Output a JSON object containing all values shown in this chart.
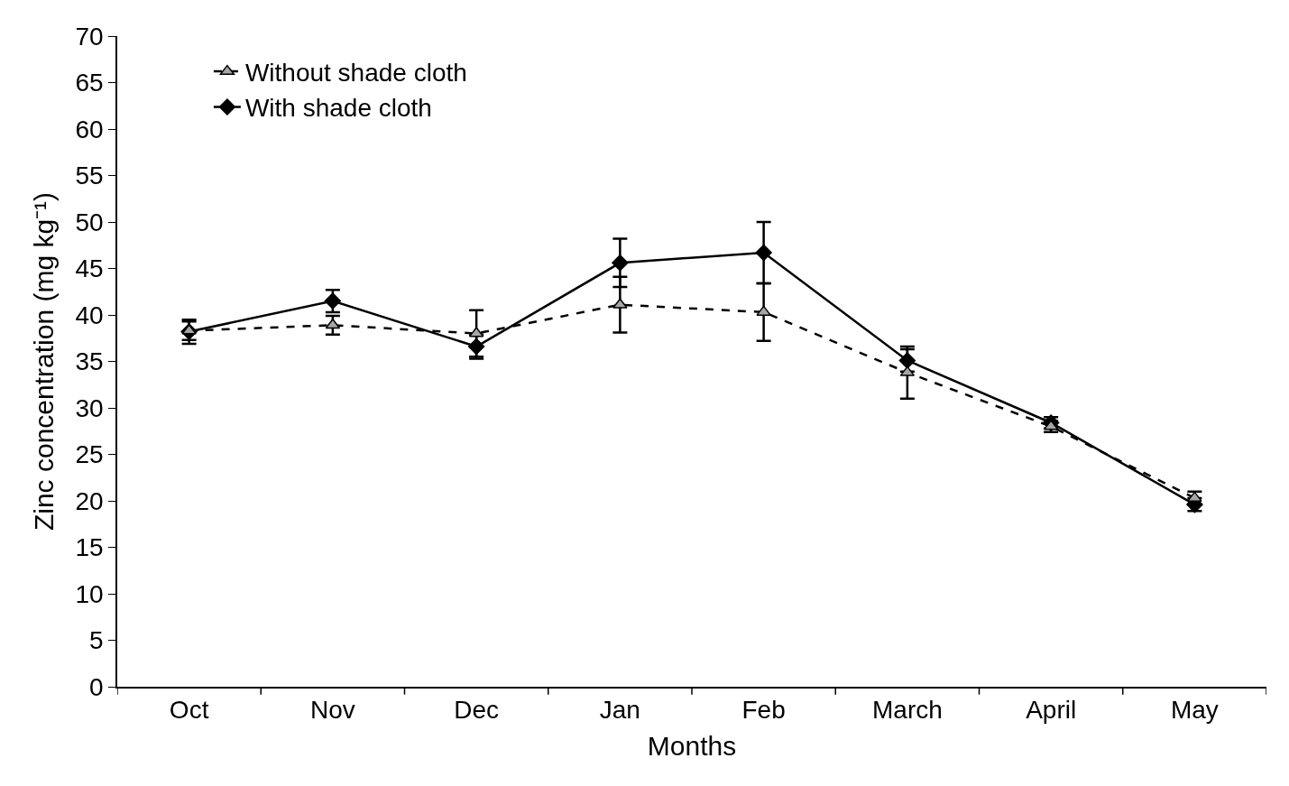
{
  "chart_data": {
    "type": "line",
    "xlabel": "Months",
    "ylabel": "Zinc concentration (mg kg⁻¹)",
    "categories": [
      "Oct",
      "Nov",
      "Dec",
      "Jan",
      "Feb",
      "March",
      "April",
      "May"
    ],
    "ylim": [
      0,
      70
    ],
    "yticks": [
      0,
      5,
      10,
      15,
      20,
      25,
      30,
      35,
      40,
      45,
      50,
      55,
      60,
      65,
      70
    ],
    "legend": "top left",
    "series": [
      {
        "name": "Without shade cloth",
        "color": "#a6a6a6",
        "marker": "triangle",
        "line_style": "dashed",
        "values": [
          38.3,
          38.9,
          38.0,
          41.1,
          40.3,
          33.8,
          28.0,
          20.3
        ],
        "errors": [
          1.0,
          1.0,
          2.5,
          3.0,
          3.1,
          2.8,
          0.6,
          0.7
        ]
      },
      {
        "name": "With shade cloth",
        "color": "#000000",
        "marker": "diamond",
        "line_style": "solid",
        "values": [
          38.2,
          41.5,
          36.6,
          45.6,
          46.7,
          35.1,
          28.4,
          19.6
        ],
        "errors": [
          1.3,
          1.2,
          1.3,
          2.6,
          3.3,
          1.2,
          0.6,
          0.7
        ]
      }
    ]
  }
}
